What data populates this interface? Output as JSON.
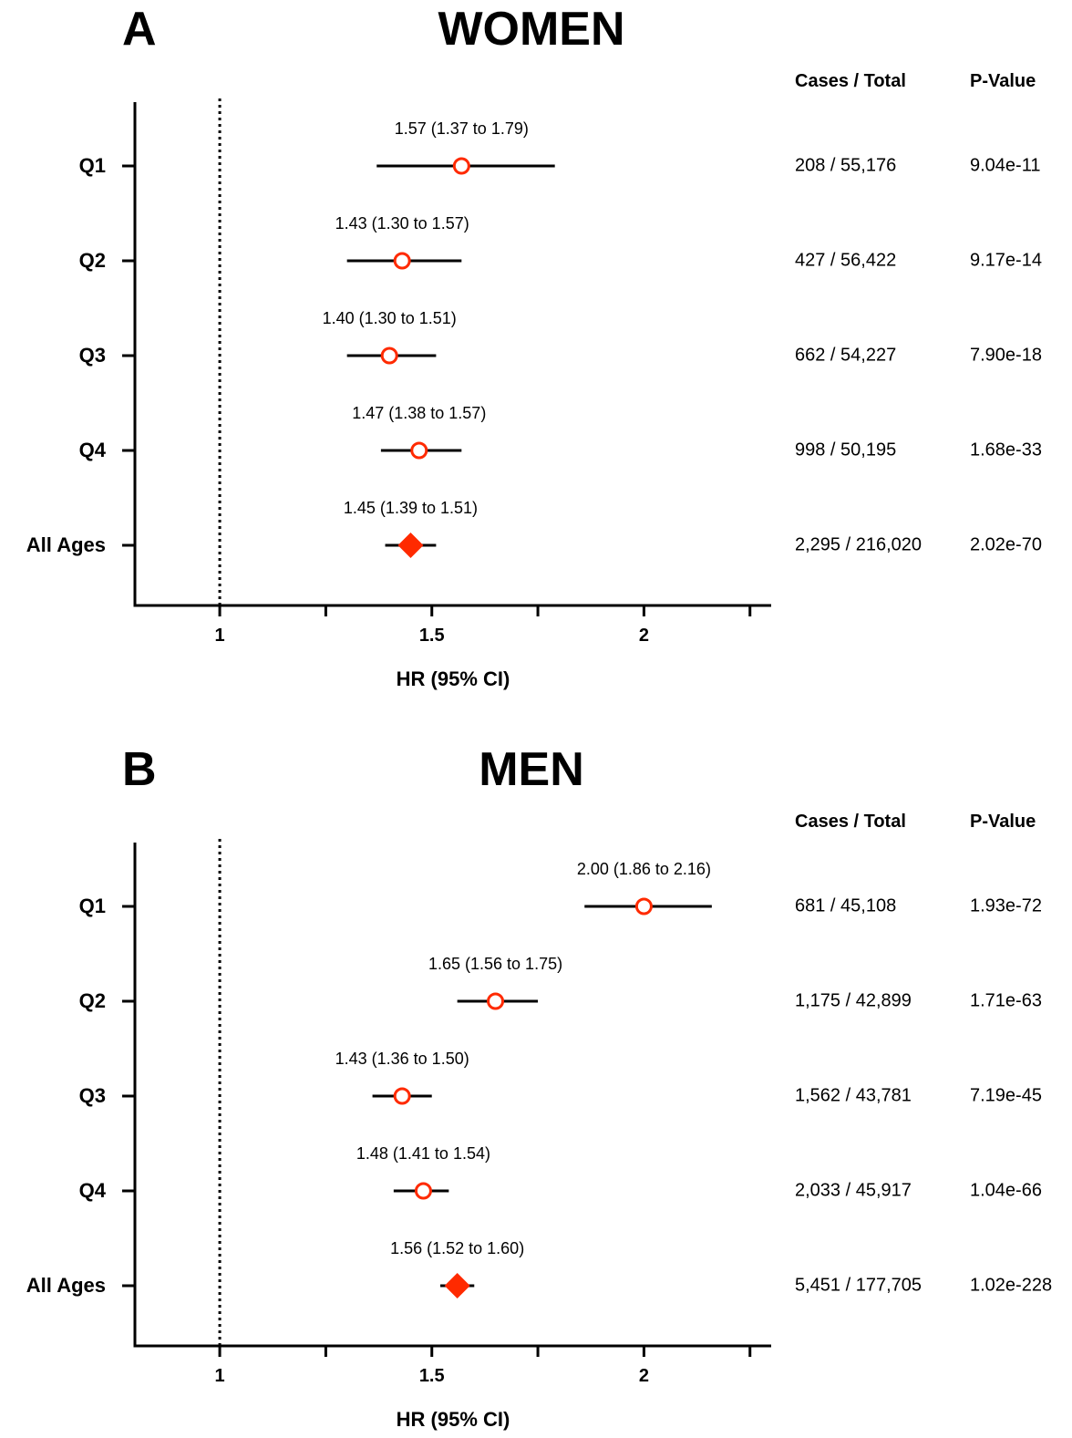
{
  "chart_data": [
    {
      "type": "forest",
      "panel_letter": "A",
      "title": "WOMEN",
      "xlabel": "HR (95% CI)",
      "xlim": [
        0.8,
        2.3
      ],
      "xticks": [
        1.0,
        1.5,
        2.0
      ],
      "minor_ticks": [
        1.25,
        1.75,
        2.25
      ],
      "reference_line": 1.0,
      "columns": {
        "cases": "Cases / Total",
        "pvalue": "P-Value"
      },
      "rows": [
        {
          "label": "Q1",
          "hr": 1.57,
          "lo": 1.37,
          "hi": 1.79,
          "estimate_text": "1.57 (1.37 to 1.79)",
          "cases": "208 / 55,176",
          "pvalue": "9.04e-11",
          "marker": "circle"
        },
        {
          "label": "Q2",
          "hr": 1.43,
          "lo": 1.3,
          "hi": 1.57,
          "estimate_text": "1.43 (1.30 to 1.57)",
          "cases": "427 / 56,422",
          "pvalue": "9.17e-14",
          "marker": "circle"
        },
        {
          "label": "Q3",
          "hr": 1.4,
          "lo": 1.3,
          "hi": 1.51,
          "estimate_text": "1.40 (1.30 to 1.51)",
          "cases": "662 / 54,227",
          "pvalue": "7.90e-18",
          "marker": "circle"
        },
        {
          "label": "Q4",
          "hr": 1.47,
          "lo": 1.38,
          "hi": 1.57,
          "estimate_text": "1.47 (1.38 to 1.57)",
          "cases": "998 / 50,195",
          "pvalue": "1.68e-33",
          "marker": "circle"
        },
        {
          "label": "All Ages",
          "hr": 1.45,
          "lo": 1.39,
          "hi": 1.51,
          "estimate_text": "1.45 (1.39 to 1.51)",
          "cases": "2,295 / 216,020",
          "pvalue": "2.02e-70",
          "marker": "diamond"
        }
      ]
    },
    {
      "type": "forest",
      "panel_letter": "B",
      "title": "MEN",
      "xlabel": "HR (95% CI)",
      "xlim": [
        0.8,
        2.3
      ],
      "xticks": [
        1.0,
        1.5,
        2.0
      ],
      "minor_ticks": [
        1.25,
        1.75,
        2.25
      ],
      "reference_line": 1.0,
      "columns": {
        "cases": "Cases / Total",
        "pvalue": "P-Value"
      },
      "rows": [
        {
          "label": "Q1",
          "hr": 2.0,
          "lo": 1.86,
          "hi": 2.16,
          "estimate_text": "2.00 (1.86 to 2.16)",
          "cases": "681 / 45,108",
          "pvalue": "1.93e-72",
          "marker": "circle"
        },
        {
          "label": "Q2",
          "hr": 1.65,
          "lo": 1.56,
          "hi": 1.75,
          "estimate_text": "1.65 (1.56 to 1.75)",
          "cases": "1,175 / 42,899",
          "pvalue": "1.71e-63",
          "marker": "circle"
        },
        {
          "label": "Q3",
          "hr": 1.43,
          "lo": 1.36,
          "hi": 1.5,
          "estimate_text": "1.43 (1.36 to 1.50)",
          "cases": "1,562 / 43,781",
          "pvalue": "7.19e-45",
          "marker": "circle"
        },
        {
          "label": "Q4",
          "hr": 1.48,
          "lo": 1.41,
          "hi": 1.54,
          "estimate_text": "1.48 (1.41 to 1.54)",
          "cases": "2,033 / 45,917",
          "pvalue": "1.04e-66",
          "marker": "circle"
        },
        {
          "label": "All Ages",
          "hr": 1.56,
          "lo": 1.52,
          "hi": 1.6,
          "estimate_text": "1.56 (1.52 to 1.60)",
          "cases": "5,451 / 177,705",
          "pvalue": "1.02e-228",
          "marker": "diamond"
        }
      ]
    }
  ],
  "colors": {
    "marker": "#ff2a00",
    "line": "#000000"
  }
}
